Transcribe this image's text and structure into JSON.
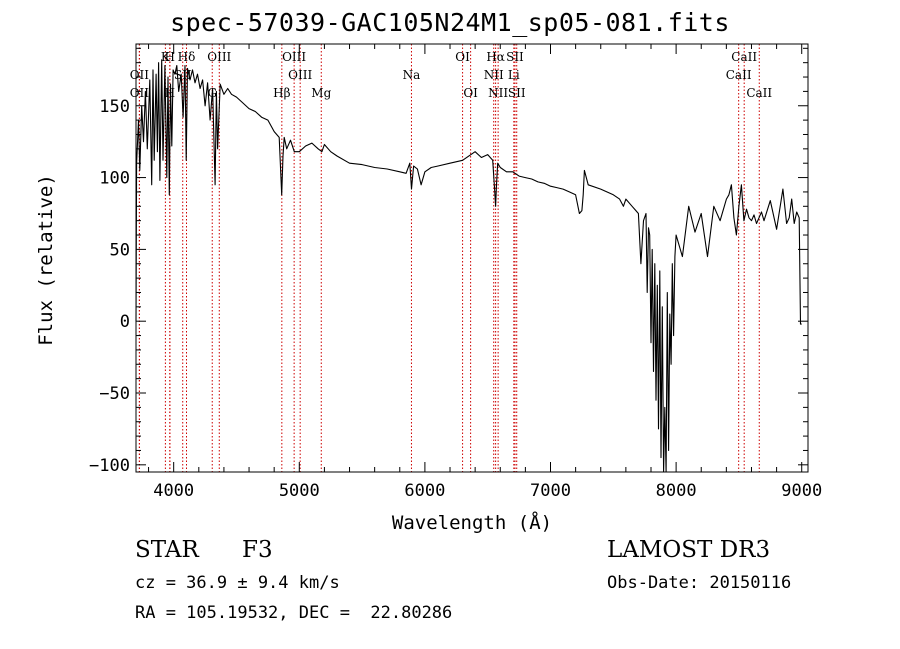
{
  "chart_data": {
    "type": "line",
    "title": "spec-57039-GAC105N24M1_sp05-081.fits",
    "xlabel": "Wavelength (Å)",
    "ylabel": "Flux (relative)",
    "xlim": [
      3700,
      9050
    ],
    "ylim": [
      -105,
      193
    ],
    "x_ticks": [
      4000,
      5000,
      6000,
      7000,
      8000,
      9000
    ],
    "y_ticks": [
      -100,
      -50,
      0,
      50,
      100,
      150
    ],
    "series": [
      {
        "name": "flux",
        "x": [
          3700,
          3705,
          3720,
          3730,
          3745,
          3760,
          3775,
          3790,
          3810,
          3825,
          3835,
          3845,
          3860,
          3870,
          3880,
          3890,
          3905,
          3915,
          3930,
          3945,
          3955,
          3965,
          3975,
          3985,
          3995,
          4010,
          4025,
          4040,
          4060,
          4075,
          4090,
          4100,
          4110,
          4130,
          4150,
          4170,
          4190,
          4210,
          4230,
          4250,
          4270,
          4290,
          4310,
          4330,
          4340,
          4350,
          4370,
          4400,
          4430,
          4460,
          4500,
          4550,
          4600,
          4650,
          4700,
          4750,
          4800,
          4840,
          4860,
          4870,
          4880,
          4900,
          4930,
          4960,
          5000,
          5050,
          5100,
          5150,
          5180,
          5200,
          5250,
          5300,
          5400,
          5500,
          5600,
          5700,
          5800,
          5850,
          5880,
          5893,
          5910,
          5940,
          5970,
          6000,
          6050,
          6100,
          6200,
          6300,
          6400,
          6450,
          6500,
          6540,
          6555,
          6563,
          6570,
          6580,
          6600,
          6650,
          6700,
          6750,
          6800,
          6850,
          6900,
          6950,
          7000,
          7050,
          7100,
          7150,
          7200,
          7230,
          7250,
          7260,
          7270,
          7300,
          7400,
          7500,
          7550,
          7580,
          7600,
          7650,
          7700,
          7720,
          7740,
          7760,
          7770,
          7780,
          7790,
          7800,
          7810,
          7820,
          7830,
          7840,
          7850,
          7860,
          7870,
          7880,
          7890,
          7900,
          7910,
          7920,
          7930,
          7940,
          7950,
          7960,
          7970,
          7980,
          7990,
          8000,
          8050,
          8100,
          8150,
          8200,
          8250,
          8300,
          8350,
          8400,
          8420,
          8440,
          8460,
          8480,
          8500,
          8520,
          8540,
          8560,
          8580,
          8600,
          8620,
          8640,
          8660,
          8680,
          8700,
          8750,
          8800,
          8850,
          8880,
          8900,
          8920,
          8940,
          8960,
          8980,
          8990,
          9000
        ],
        "y": [
          0,
          110,
          140,
          105,
          150,
          125,
          160,
          120,
          168,
          95,
          175,
          112,
          172,
          118,
          180,
          98,
          182,
          112,
          178,
          100,
          170,
          88,
          165,
          122,
          175,
          172,
          178,
          160,
          172,
          142,
          178,
          112,
          176,
          168,
          175,
          166,
          172,
          162,
          168,
          150,
          166,
          140,
          162,
          95,
          160,
          120,
          165,
          158,
          162,
          158,
          156,
          152,
          148,
          146,
          142,
          140,
          132,
          128,
          88,
          115,
          128,
          120,
          126,
          118,
          118,
          122,
          124,
          120,
          118,
          123,
          118,
          115,
          110,
          109,
          107,
          106,
          104,
          103,
          110,
          92,
          108,
          106,
          95,
          104,
          107,
          108,
          110,
          112,
          118,
          114,
          116,
          112,
          92,
          80,
          95,
          110,
          107,
          104,
          104,
          101,
          100,
          99,
          97,
          96,
          94,
          93,
          92,
          90,
          88,
          75,
          77,
          88,
          105,
          95,
          92,
          88,
          85,
          80,
          85,
          80,
          75,
          40,
          70,
          75,
          20,
          65,
          60,
          -15,
          50,
          -35,
          40,
          -55,
          25,
          -75,
          35,
          -95,
          10,
          -105,
          -60,
          -105,
          20,
          -90,
          5,
          -30,
          40,
          -10,
          45,
          60,
          45,
          80,
          62,
          75,
          45,
          80,
          70,
          85,
          88,
          95,
          72,
          60,
          80,
          95,
          70,
          78,
          72,
          70,
          74,
          68,
          72,
          76,
          70,
          84,
          64,
          92,
          68,
          72,
          85,
          68,
          76,
          72,
          -2,
          -2
        ]
      }
    ],
    "lines": [
      {
        "label": "Hδ",
        "wl": 4102,
        "row": 0
      },
      {
        "label": "K",
        "wl": 3934,
        "row": 0
      },
      {
        "label": "H",
        "wl": 3969,
        "row": 0
      },
      {
        "label": "OII",
        "wl": 3727,
        "row": 1
      },
      {
        "label": "SII",
        "wl": 4072,
        "row": 1
      },
      {
        "label": "OII",
        "wl": 3727,
        "row": 2
      },
      {
        "label": "H",
        "wl": 3970,
        "row": 2
      },
      {
        "label": "G",
        "wl": 4307,
        "row": 2
      },
      {
        "label": "OIII",
        "wl": 4363,
        "row": 0
      },
      {
        "label": "Hβ",
        "wl": 4861,
        "row": 2
      },
      {
        "label": "OIII",
        "wl": 4959,
        "row": 0
      },
      {
        "label": "OIII",
        "wl": 5007,
        "row": 1
      },
      {
        "label": "Mg",
        "wl": 5175,
        "row": 2
      },
      {
        "label": "Na",
        "wl": 5893,
        "row": 1
      },
      {
        "label": "OI",
        "wl": 6300,
        "row": 0
      },
      {
        "label": "OI",
        "wl": 6364,
        "row": 2
      },
      {
        "label": "Hα",
        "wl": 6563,
        "row": 0
      },
      {
        "label": "NII",
        "wl": 6548,
        "row": 1
      },
      {
        "label": "NII",
        "wl": 6583,
        "row": 2
      },
      {
        "label": "SII",
        "wl": 6717,
        "row": 0
      },
      {
        "label": "Li",
        "wl": 6708,
        "row": 1
      },
      {
        "label": "SII",
        "wl": 6731,
        "row": 2
      },
      {
        "label": "CaII",
        "wl": 8498,
        "row": 1
      },
      {
        "label": "CaII",
        "wl": 8542,
        "row": 0
      },
      {
        "label": "CaII",
        "wl": 8662,
        "row": 2
      }
    ]
  },
  "info": {
    "cls": "STAR",
    "subcls": "F3",
    "survey": "LAMOST DR3",
    "cz": "cz = 36.9 ± 9.4 km/s",
    "obsdate": "Obs-Date: 20150116",
    "radec": "RA = 105.19532, DEC =  22.80286"
  },
  "colors": {
    "axis": "#000000",
    "spectrum": "#000000",
    "line_marker": "#cc0000"
  }
}
